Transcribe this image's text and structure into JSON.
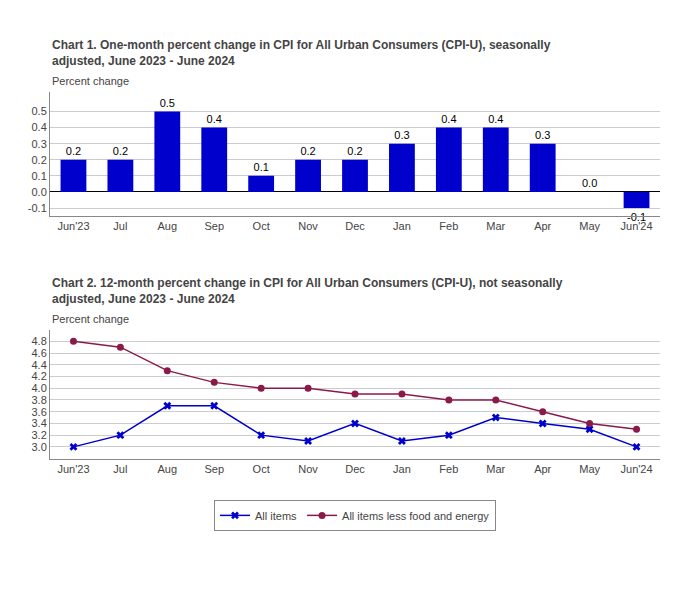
{
  "chart_data": [
    {
      "type": "bar",
      "title": "Chart 1. One-month percent change in CPI for All Urban Consumers (CPI-U), seasonally adjusted, June 2023 - June 2024",
      "y_label": "Percent change",
      "categories": [
        "Jun'23",
        "Jul",
        "Aug",
        "Sep",
        "Oct",
        "Nov",
        "Dec",
        "Jan",
        "Feb",
        "Mar",
        "Apr",
        "May",
        "Jun'24"
      ],
      "values": [
        0.2,
        0.2,
        0.5,
        0.4,
        0.1,
        0.2,
        0.2,
        0.3,
        0.4,
        0.4,
        0.3,
        0.0,
        -0.1
      ],
      "value_labels": [
        "0.2",
        "0.2",
        "0.5",
        "0.4",
        "0.1",
        "0.2",
        "0.2",
        "0.3",
        "0.4",
        "0.4",
        "0.3",
        "0.0",
        "-0.1"
      ],
      "data_labels": true,
      "color": "#0000CC",
      "ylim": [
        -0.15,
        0.62
      ],
      "yticks": [
        -0.1,
        {
          "value": 0.0,
          "label": "0.0"
        },
        0.1,
        0.2,
        0.3,
        0.4,
        0.5
      ],
      "grid": true
    },
    {
      "type": "line",
      "title": "Chart 2. 12-month percent change in CPI for All Urban Consumers (CPI-U), not seasonally adjusted, June 2023 - June 2024",
      "y_label": "Percent change",
      "categories": [
        "Jun'23",
        "Jul",
        "Aug",
        "Sep",
        "Oct",
        "Nov",
        "Dec",
        "Jan",
        "Feb",
        "Mar",
        "Apr",
        "May",
        "Jun'24"
      ],
      "series": [
        {
          "name": "All items",
          "color": "#0000CC",
          "marker": "x",
          "values": [
            3.0,
            3.2,
            3.7,
            3.7,
            3.2,
            3.1,
            3.4,
            3.1,
            3.2,
            3.5,
            3.4,
            3.3,
            3.0
          ]
        },
        {
          "name": "All items less food and energy",
          "color": "#8B1A4A",
          "marker": "circle",
          "values": [
            4.8,
            4.7,
            4.3,
            4.1,
            4.0,
            4.0,
            3.9,
            3.9,
            3.8,
            3.8,
            3.6,
            3.4,
            3.3
          ]
        }
      ],
      "ylim": [
        2.8,
        5.0
      ],
      "yticks": [
        {
          "value": 3.0,
          "label": "3.0"
        },
        3.2,
        3.4,
        3.6,
        3.8,
        {
          "value": 4.0,
          "label": "4.0"
        },
        4.2,
        4.4,
        4.6,
        4.8
      ],
      "grid": true,
      "legend": "bottom"
    }
  ]
}
